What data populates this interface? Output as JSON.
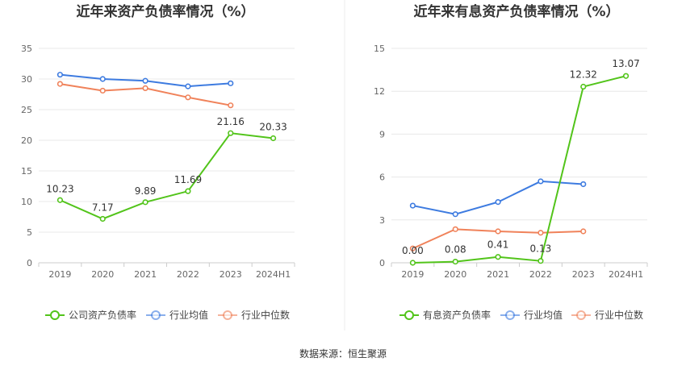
{
  "chart_data": [
    {
      "type": "line",
      "title": "近年来资产负债率情况（%）",
      "categories": [
        "2019",
        "2020",
        "2021",
        "2022",
        "2023",
        "2024H1"
      ],
      "yticks": [
        "0",
        "5",
        "10",
        "15",
        "20",
        "25",
        "30",
        "35"
      ],
      "ylim": [
        0,
        35
      ],
      "grid": true,
      "legend_position": "bottom",
      "series": [
        {
          "name": "公司资产负债率",
          "color": "#52c41a",
          "values": [
            10.23,
            7.17,
            9.89,
            11.69,
            21.16,
            20.33
          ],
          "labels": [
            "10.23",
            "7.17",
            "9.89",
            "11.69",
            "21.16",
            "20.33"
          ]
        },
        {
          "name": "行业均值",
          "color": "#3d7be0",
          "values": [
            30.7,
            30.0,
            29.7,
            28.8,
            29.3,
            null
          ]
        },
        {
          "name": "行业中位数",
          "color": "#f0825a",
          "values": [
            29.2,
            28.1,
            28.5,
            27.0,
            25.7,
            null
          ]
        }
      ]
    },
    {
      "type": "line",
      "title": "近年来有息资产负债率情况（%）",
      "categories": [
        "2019",
        "2020",
        "2021",
        "2022",
        "2023",
        "2024H1"
      ],
      "yticks": [
        "0",
        "3",
        "6",
        "9",
        "12",
        "15"
      ],
      "ylim": [
        0,
        15
      ],
      "grid": true,
      "legend_position": "bottom",
      "series": [
        {
          "name": "有息资产负债率",
          "color": "#52c41a",
          "values": [
            0.0,
            0.08,
            0.41,
            0.13,
            12.32,
            13.07
          ],
          "labels": [
            "0.00",
            "0.08",
            "0.41",
            "0.13",
            "12.32",
            "13.07"
          ]
        },
        {
          "name": "行业均值",
          "color": "#3d7be0",
          "values": [
            4.0,
            3.4,
            4.25,
            5.7,
            5.5,
            null
          ]
        },
        {
          "name": "行业中位数",
          "color": "#f0825a",
          "values": [
            1.0,
            2.35,
            2.2,
            2.1,
            2.2,
            null
          ]
        }
      ]
    }
  ],
  "footer": {
    "source": "数据来源：恒生聚源"
  }
}
